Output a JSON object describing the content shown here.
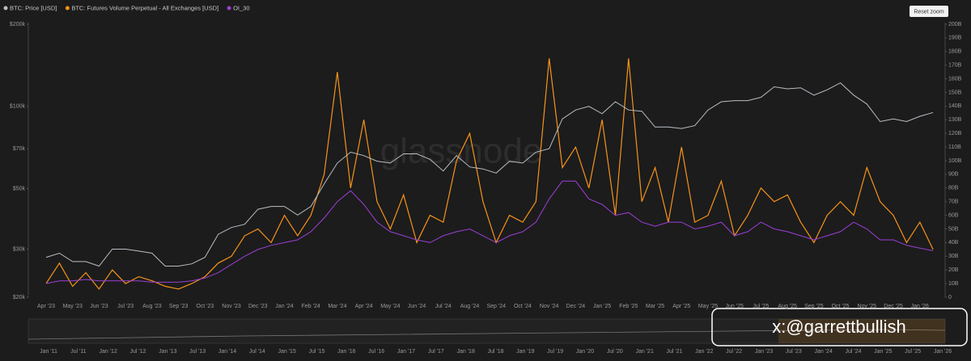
{
  "chart_data": {
    "type": "line",
    "legend": [
      "BTC: Price [USD]",
      "BTC: Futures Volume Perpetual - All Exchanges [USD]",
      "OI_30"
    ],
    "reset_button": "Reset zoom",
    "watermark": "glassnode",
    "credit": "x:@garrettbullish",
    "categories": [
      "Apr '23",
      null,
      "May '23",
      null,
      "Jun '23",
      null,
      "Jul '23",
      null,
      "Aug '23",
      null,
      "Sep '23",
      null,
      "Oct '23",
      null,
      "Nov '23",
      null,
      "Dec '23",
      null,
      "Jan '24",
      null,
      "Feb '24",
      null,
      "Mar '24",
      null,
      "Apr '24",
      null,
      "May '24",
      null,
      "Jun '24",
      null,
      "Jul '24",
      null,
      "Aug '24",
      null,
      "Sep '24",
      null,
      "Oct '24",
      null,
      "Nov '24",
      null,
      "Dec '24",
      null,
      "Jan '25",
      null,
      "Feb '25",
      null,
      "Mar '25",
      null,
      "Apr '25",
      null,
      "May '25",
      null,
      "Jun '25",
      null,
      "Jul '25",
      null,
      "Aug '25",
      null,
      "Sep '25",
      null,
      "Oct '25",
      null,
      "Nov '25",
      null,
      "Dec '25",
      null,
      "Jan '26",
      null
    ],
    "series": [
      {
        "name": "BTC: Price [USD]",
        "color": "#b9bec4",
        "axis": "y",
        "values": [
          28000,
          29000,
          27000,
          27000,
          26000,
          30000,
          30000,
          29500,
          29000,
          26000,
          26000,
          26500,
          28000,
          34000,
          36000,
          37000,
          42000,
          43000,
          43000,
          40000,
          43000,
          52000,
          62000,
          68000,
          66000,
          63000,
          62000,
          67000,
          67000,
          64000,
          58000,
          66000,
          60000,
          59000,
          57000,
          63000,
          62000,
          68000,
          70000,
          90000,
          97000,
          100000,
          94000,
          104000,
          97000,
          96000,
          84000,
          84000,
          83000,
          85000,
          97000,
          104000,
          105000,
          105000,
          108000,
          118000,
          116000,
          117000,
          110000,
          115000,
          122000,
          110000,
          102000,
          88000,
          90000,
          88000,
          92000,
          95000
        ]
      },
      {
        "name": "BTC: Futures Volume Perpetual - All Exchanges [USD]",
        "color": "#f7931a",
        "axis": "y2",
        "values": [
          10,
          25,
          8,
          18,
          6,
          20,
          10,
          15,
          12,
          8,
          6,
          10,
          15,
          25,
          30,
          45,
          50,
          40,
          60,
          45,
          60,
          90,
          165,
          80,
          130,
          70,
          50,
          75,
          40,
          60,
          55,
          100,
          120,
          70,
          40,
          60,
          55,
          70,
          175,
          95,
          110,
          80,
          130,
          60,
          175,
          70,
          95,
          55,
          110,
          55,
          60,
          85,
          45,
          60,
          80,
          70,
          75,
          55,
          40,
          60,
          70,
          60,
          95,
          70,
          60,
          40,
          55,
          35
        ]
      },
      {
        "name": "OI_30",
        "color": "#9b3fd6",
        "axis": "y2",
        "values": [
          10,
          12,
          12,
          13,
          12,
          12,
          12,
          12,
          11,
          11,
          11,
          12,
          14,
          18,
          24,
          30,
          35,
          38,
          40,
          42,
          48,
          58,
          70,
          78,
          68,
          55,
          48,
          45,
          42,
          40,
          45,
          48,
          50,
          45,
          40,
          45,
          48,
          55,
          72,
          85,
          85,
          72,
          68,
          60,
          62,
          55,
          52,
          55,
          55,
          50,
          52,
          55,
          45,
          48,
          55,
          50,
          48,
          45,
          42,
          45,
          48,
          55,
          50,
          42,
          42,
          38,
          36,
          34
        ]
      }
    ],
    "ylog": true,
    "ylim": [
      20000,
      200000
    ],
    "yticks": [
      {
        "value": 20000,
        "label": "$20k"
      },
      {
        "value": 30000,
        "label": "$30k"
      },
      {
        "value": 50000,
        "label": "$50k"
      },
      {
        "value": 70000,
        "label": "$70k"
      },
      {
        "value": 100000,
        "label": "$100k"
      },
      {
        "value": 200000,
        "label": "$200k"
      }
    ],
    "y2lim": [
      0,
      200
    ],
    "y2ticks": [
      0,
      {
        "value": 10,
        "label": "10B"
      },
      {
        "value": 20,
        "label": "20B"
      },
      {
        "value": 30,
        "label": "30B"
      },
      {
        "value": 40,
        "label": "40B"
      },
      {
        "value": 50,
        "label": "50B"
      },
      {
        "value": 60,
        "label": "60B"
      },
      {
        "value": 70,
        "label": "70B"
      },
      {
        "value": 80,
        "label": "80B"
      },
      {
        "value": 90,
        "label": "90B"
      },
      {
        "value": 100,
        "label": "100B"
      },
      {
        "value": 110,
        "label": "110B"
      },
      {
        "value": 120,
        "label": "120B"
      },
      {
        "value": 130,
        "label": "130B"
      },
      {
        "value": 140,
        "label": "140B"
      },
      {
        "value": 150,
        "label": "150B"
      },
      {
        "value": 160,
        "label": "160B"
      },
      {
        "value": 170,
        "label": "170B"
      },
      {
        "value": 180,
        "label": "180B"
      },
      {
        "value": 190,
        "label": "190B"
      },
      {
        "value": 200,
        "label": "200B"
      }
    ],
    "navigator_labels": [
      "Jan '11",
      "Jul '11",
      "Jan '12",
      "Jul '12",
      "Jan '13",
      "Jul '13",
      "Jan '14",
      "Jul '14",
      "Jan '15",
      "Jul '15",
      "Jan '16",
      "Jul '16",
      "Jan '17",
      "Jul '17",
      "Jan '18",
      "Jul '18",
      "Jan '19",
      "Jul '19",
      "Jan '20",
      "Jul '20",
      "Jan '21",
      "Jul '21",
      "Jan '22",
      "Jul '22",
      "Jan '23",
      "Jul '23",
      "Jan '24",
      "Jul '24",
      "Jan '25",
      "Jul '25",
      "Jan '26"
    ]
  }
}
